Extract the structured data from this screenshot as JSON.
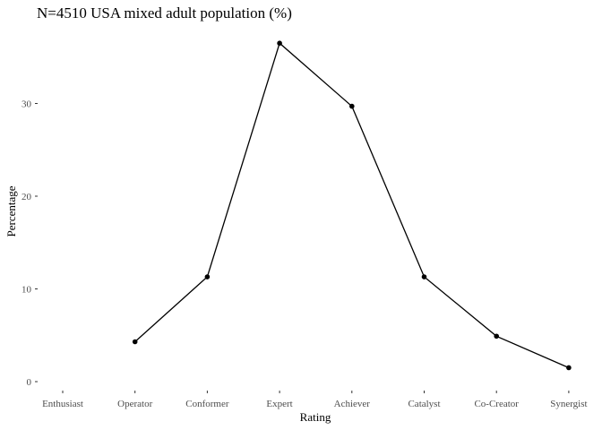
{
  "chart_data": {
    "type": "line",
    "title": "N=4510 USA mixed adult population (%)",
    "xlabel": "Rating",
    "ylabel": "Percentage",
    "categories": [
      "Enthusiast",
      "Operator",
      "Conformer",
      "Expert",
      "Achiever",
      "Catalyst",
      "Co-Creator",
      "Synergist"
    ],
    "values": [
      null,
      4.3,
      11.3,
      36.5,
      29.7,
      11.3,
      4.9,
      1.5
    ],
    "ylim": [
      0,
      36.5
    ],
    "yticks": [
      0,
      10,
      20,
      30
    ],
    "ytick_labels": [
      "0",
      "10",
      "20",
      "30"
    ],
    "grid": false,
    "legend": "none",
    "colors": {
      "line": "#000000",
      "point": "#000000",
      "text": "#000000",
      "tick_text": "#4d4d4d"
    }
  }
}
